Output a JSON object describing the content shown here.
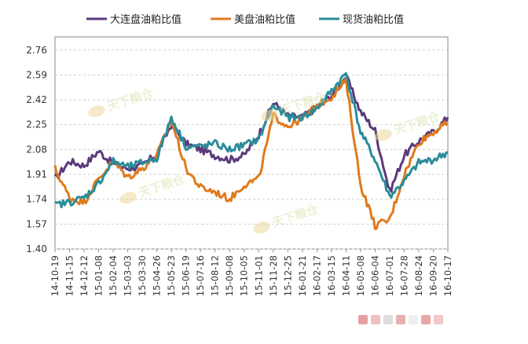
{
  "watermark": {
    "text": "天下粮仓"
  },
  "chart_data": {
    "type": "line",
    "title": "",
    "xlabel": "",
    "ylabel": "",
    "ylim": [
      1.4,
      2.85
    ],
    "yticks": [
      "1.40",
      "1.57",
      "1.74",
      "1.91",
      "2.08",
      "2.25",
      "2.42",
      "2.59",
      "2.76"
    ],
    "xtick_labels": [
      "14-10-19",
      "14-11-15",
      "14-12-12",
      "15-01-08",
      "15-02-04",
      "15-03-03",
      "15-03-30",
      "15-04-26",
      "15-05-23",
      "15-06-19",
      "15-07-16",
      "15-08-12",
      "15-09-08",
      "15-10-05",
      "15-11-01",
      "15-11-28",
      "15-12-25",
      "16-01-21",
      "16-02-17",
      "16-03-15",
      "16-04-11",
      "16-05-08",
      "16-06-04",
      "16-07-01",
      "16-07-28",
      "16-08-24",
      "16-09-20",
      "16-10-17"
    ],
    "grid": true,
    "legend_position": "top",
    "series": [
      {
        "name": "大连盘油粕比值",
        "color": "#5b3a7a",
        "x": [
          "14-10-19",
          "14-11-15",
          "14-12-12",
          "15-01-08",
          "15-02-04",
          "15-03-03",
          "15-03-30",
          "15-04-26",
          "15-05-23",
          "15-06-19",
          "15-07-16",
          "15-08-12",
          "15-09-08",
          "15-10-05",
          "15-11-01",
          "15-11-28",
          "15-12-25",
          "16-01-21",
          "16-02-17",
          "16-03-15",
          "16-04-11",
          "16-05-08",
          "16-06-04",
          "16-07-01",
          "16-07-28",
          "16-08-24",
          "16-09-20",
          "16-10-17"
        ],
        "values": [
          1.88,
          2.0,
          1.97,
          2.07,
          1.98,
          1.95,
          1.97,
          2.05,
          2.25,
          2.12,
          2.08,
          2.04,
          2.01,
          2.04,
          2.18,
          2.4,
          2.31,
          2.3,
          2.37,
          2.45,
          2.58,
          2.34,
          2.21,
          1.79,
          2.04,
          2.14,
          2.2,
          2.3
        ]
      },
      {
        "name": "美盘油粕比值",
        "color": "#e07a1c",
        "x": [
          "14-10-19",
          "14-11-15",
          "14-12-12",
          "15-01-08",
          "15-02-04",
          "15-03-03",
          "15-03-30",
          "15-04-26",
          "15-05-23",
          "15-06-19",
          "15-07-16",
          "15-08-12",
          "15-09-08",
          "15-10-05",
          "15-11-01",
          "15-11-28",
          "15-12-25",
          "16-01-21",
          "16-02-17",
          "16-03-15",
          "16-04-11",
          "16-05-08",
          "16-06-04",
          "16-07-01",
          "16-07-28",
          "16-08-24",
          "16-09-20",
          "16-10-17"
        ],
        "values": [
          1.95,
          1.75,
          1.72,
          1.88,
          2.0,
          1.89,
          1.95,
          2.04,
          2.28,
          1.95,
          1.82,
          1.79,
          1.74,
          1.84,
          1.88,
          2.31,
          2.24,
          2.29,
          2.38,
          2.44,
          2.55,
          1.84,
          1.56,
          1.6,
          1.91,
          2.13,
          2.2,
          2.26
        ]
      },
      {
        "name": "现货油粕比值",
        "color": "#2b8c9a",
        "x": [
          "14-10-19",
          "14-11-15",
          "14-12-12",
          "15-01-08",
          "15-02-04",
          "15-03-03",
          "15-03-30",
          "15-04-26",
          "15-05-23",
          "15-06-19",
          "15-07-16",
          "15-08-12",
          "15-09-08",
          "15-10-05",
          "15-11-01",
          "15-11-28",
          "15-12-25",
          "16-01-21",
          "16-02-17",
          "16-03-15",
          "16-04-11",
          "16-05-08",
          "16-06-04",
          "16-07-01",
          "16-07-28",
          "16-08-24",
          "16-09-20",
          "16-10-17"
        ],
        "values": [
          1.7,
          1.72,
          1.75,
          1.85,
          2.0,
          1.96,
          1.99,
          2.02,
          2.3,
          2.1,
          2.1,
          2.12,
          2.08,
          2.11,
          2.15,
          2.38,
          2.3,
          2.3,
          2.36,
          2.48,
          2.6,
          2.2,
          2.01,
          1.76,
          1.86,
          1.99,
          2.01,
          2.06
        ]
      }
    ]
  }
}
